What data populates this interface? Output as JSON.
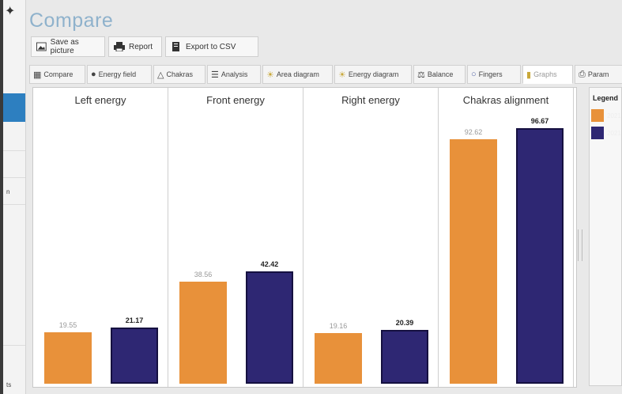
{
  "window": {
    "title": "Compare"
  },
  "toolbar": {
    "save_label": "Save as picture",
    "report_label": "Report",
    "export_label": "Export to CSV"
  },
  "tabs": [
    {
      "label": "Compare",
      "icon": "compare-icon"
    },
    {
      "label": "Energy field",
      "icon": "person-icon"
    },
    {
      "label": "Chakras",
      "icon": "meditation-icon"
    },
    {
      "label": "Analysis",
      "icon": "analysis-icon"
    },
    {
      "label": "Area diagram",
      "icon": "sun-icon"
    },
    {
      "label": "Energy diagram",
      "icon": "sun-icon"
    },
    {
      "label": "Balance",
      "icon": "scale-icon"
    },
    {
      "label": "Fingers",
      "icon": "circle-icon"
    },
    {
      "label": "Graphs",
      "icon": "bar-chart-icon",
      "active": true
    },
    {
      "label": "Param",
      "icon": "printer-icon"
    }
  ],
  "sidebar": {
    "stubs": [
      "n",
      "ts"
    ]
  },
  "legend": {
    "title": "Legend",
    "items": [
      {
        "label": "2021",
        "color": "#e8913a"
      },
      {
        "label": "2021",
        "color": "#2e2773"
      }
    ]
  },
  "chart_data": {
    "type": "bar",
    "series_colors": [
      "#e8913a",
      "#2e2773"
    ],
    "ylim": [
      0,
      100
    ],
    "panels": [
      {
        "title": "Left energy",
        "values": [
          19.55,
          21.17
        ],
        "labels": [
          "19.55",
          "21.17"
        ]
      },
      {
        "title": "Front energy",
        "values": [
          38.56,
          42.42
        ],
        "labels": [
          "38.56",
          "42.42"
        ]
      },
      {
        "title": "Right energy",
        "values": [
          19.16,
          20.39
        ],
        "labels": [
          "19.16",
          "20.39"
        ]
      },
      {
        "title": "Chakras alignment",
        "values": [
          92.62,
          96.67
        ],
        "labels": [
          "92.62",
          "96.67"
        ]
      }
    ]
  }
}
